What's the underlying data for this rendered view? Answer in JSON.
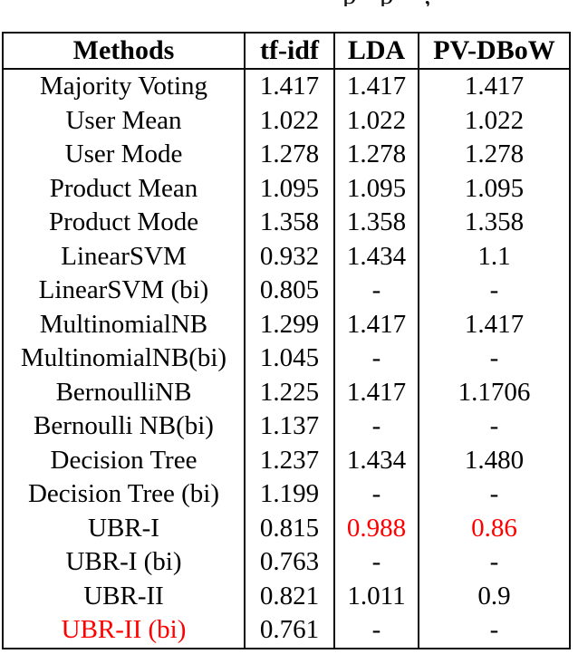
{
  "caption_fragments": {
    "note": "bottom tips of letters from a cropped caption line",
    "letters": [
      "p",
      "p",
      ","
    ],
    "x_positions": [
      378,
      419,
      468
    ]
  },
  "colors": {
    "highlight": "#ff0000",
    "border": "#0c0c0c",
    "text": "#000000",
    "background": "#ffffff"
  },
  "table": {
    "headers": [
      "Methods",
      "tf-idf",
      "LDA",
      "PV-DBoW"
    ],
    "rows": [
      {
        "cells": [
          "Majority Voting",
          "1.417",
          "1.417",
          "1.417"
        ],
        "red": [
          false,
          false,
          false,
          false
        ]
      },
      {
        "cells": [
          "User Mean",
          "1.022",
          "1.022",
          "1.022"
        ],
        "red": [
          false,
          false,
          false,
          false
        ]
      },
      {
        "cells": [
          "User Mode",
          "1.278",
          "1.278",
          "1.278"
        ],
        "red": [
          false,
          false,
          false,
          false
        ]
      },
      {
        "cells": [
          "Product Mean",
          "1.095",
          "1.095",
          "1.095"
        ],
        "red": [
          false,
          false,
          false,
          false
        ]
      },
      {
        "cells": [
          "Product Mode",
          "1.358",
          "1.358",
          "1.358"
        ],
        "red": [
          false,
          false,
          false,
          false
        ]
      },
      {
        "cells": [
          "LinearSVM",
          "0.932",
          "1.434",
          "1.1"
        ],
        "red": [
          false,
          false,
          false,
          false
        ]
      },
      {
        "cells": [
          "LinearSVM (bi)",
          "0.805",
          "-",
          "-"
        ],
        "red": [
          false,
          false,
          false,
          false
        ]
      },
      {
        "cells": [
          "MultinomialNB",
          "1.299",
          "1.417",
          "1.417"
        ],
        "red": [
          false,
          false,
          false,
          false
        ]
      },
      {
        "cells": [
          "MultinomialNB(bi)",
          "1.045",
          "-",
          "-"
        ],
        "red": [
          false,
          false,
          false,
          false
        ]
      },
      {
        "cells": [
          "BernoulliNB",
          "1.225",
          "1.417",
          "1.1706"
        ],
        "red": [
          false,
          false,
          false,
          false
        ]
      },
      {
        "cells": [
          "Bernoulli NB(bi)",
          "1.137",
          "-",
          "-"
        ],
        "red": [
          false,
          false,
          false,
          false
        ]
      },
      {
        "cells": [
          "Decision Tree",
          "1.237",
          "1.434",
          "1.480"
        ],
        "red": [
          false,
          false,
          false,
          false
        ]
      },
      {
        "cells": [
          "Decision Tree (bi)",
          "1.199",
          "-",
          "-"
        ],
        "red": [
          false,
          false,
          false,
          false
        ]
      },
      {
        "cells": [
          "UBR-I",
          "0.815",
          "0.988",
          "0.86"
        ],
        "red": [
          false,
          false,
          true,
          true
        ]
      },
      {
        "cells": [
          "UBR-I (bi)",
          "0.763",
          "-",
          "-"
        ],
        "red": [
          false,
          false,
          false,
          false
        ]
      },
      {
        "cells": [
          "UBR-II",
          "0.821",
          "1.011",
          "0.9"
        ],
        "red": [
          false,
          false,
          false,
          false
        ]
      },
      {
        "cells": [
          "UBR-II (bi)",
          "0.761",
          "-",
          "-"
        ],
        "red": [
          true,
          false,
          false,
          false
        ]
      }
    ]
  }
}
